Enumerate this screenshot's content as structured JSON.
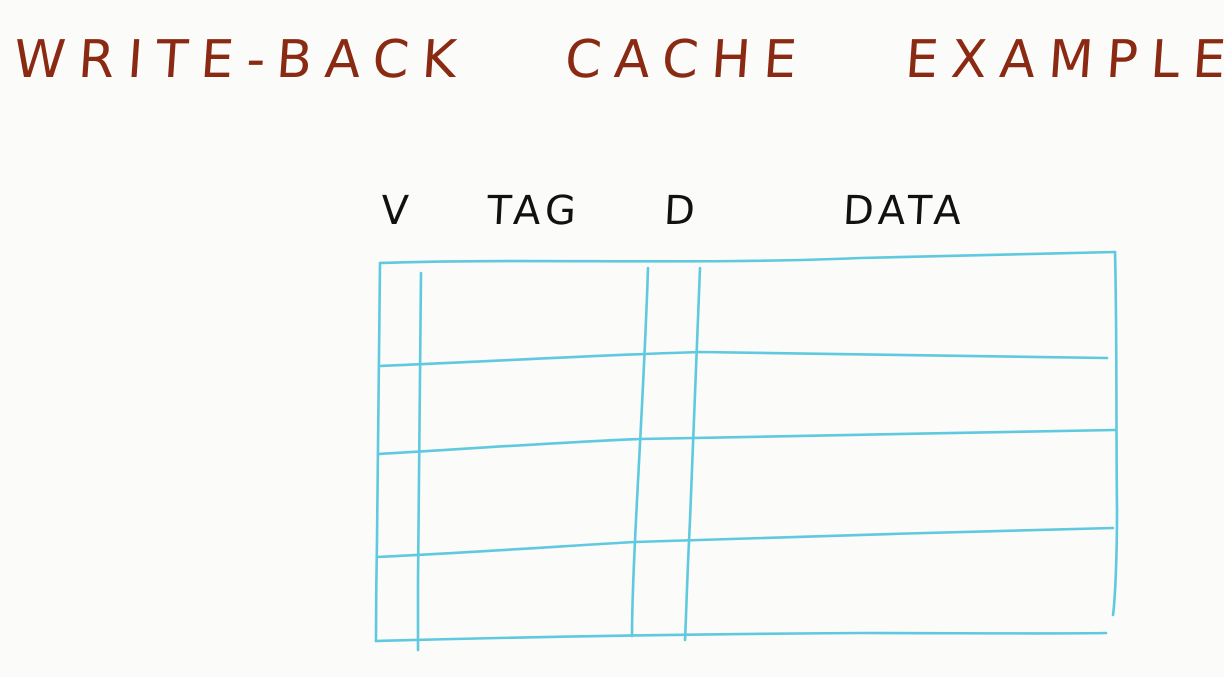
{
  "title": {
    "part1": "WRITE-BACK",
    "part2": "CACHE",
    "part3": "EXAMPLE"
  },
  "table": {
    "headers": {
      "valid": "V",
      "tag": "TAG",
      "dirty": "D",
      "data": "DATA"
    },
    "row_count": 4
  },
  "colors": {
    "title": "#8a2a12",
    "headers": "#111111",
    "grid": "#5ec9df",
    "background": "#fbfbf9"
  }
}
